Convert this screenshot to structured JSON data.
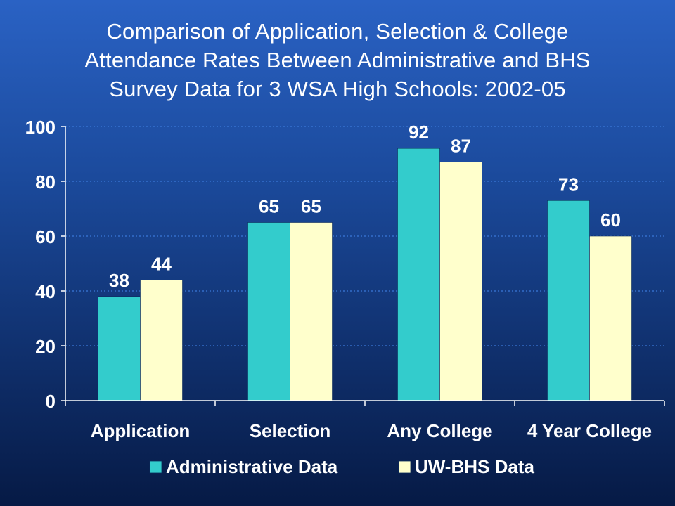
{
  "title": {
    "line1": "Comparison of Application, Selection & College",
    "line2": "Attendance Rates Between Administrative and BHS",
    "line3": "Survey Data for 3 WSA High Schools: 2002-05"
  },
  "colors": {
    "administrative": "#33cccc",
    "uwbhs": "#ffffcc",
    "text": "#ffffff",
    "grid": "#3a78d8",
    "axis": "#ffffff"
  },
  "chart_data": {
    "type": "bar",
    "title": "Comparison of Application, Selection & College Attendance Rates Between Administrative and BHS Survey Data for 3 WSA High Schools: 2002-05",
    "categories": [
      "Application",
      "Selection",
      "Any College",
      "4 Year College"
    ],
    "series": [
      {
        "name": "Administrative Data",
        "values": [
          38,
          65,
          92,
          73
        ],
        "color": "#33cccc"
      },
      {
        "name": "UW-BHS Data",
        "values": [
          44,
          65,
          87,
          60
        ],
        "color": "#ffffcc"
      }
    ],
    "ylim": [
      0,
      100
    ],
    "yticks": [
      0,
      20,
      40,
      60,
      80,
      100
    ],
    "xlabel": "",
    "ylabel": "",
    "grid": true,
    "legend_position": "bottom",
    "data_labels": true
  }
}
